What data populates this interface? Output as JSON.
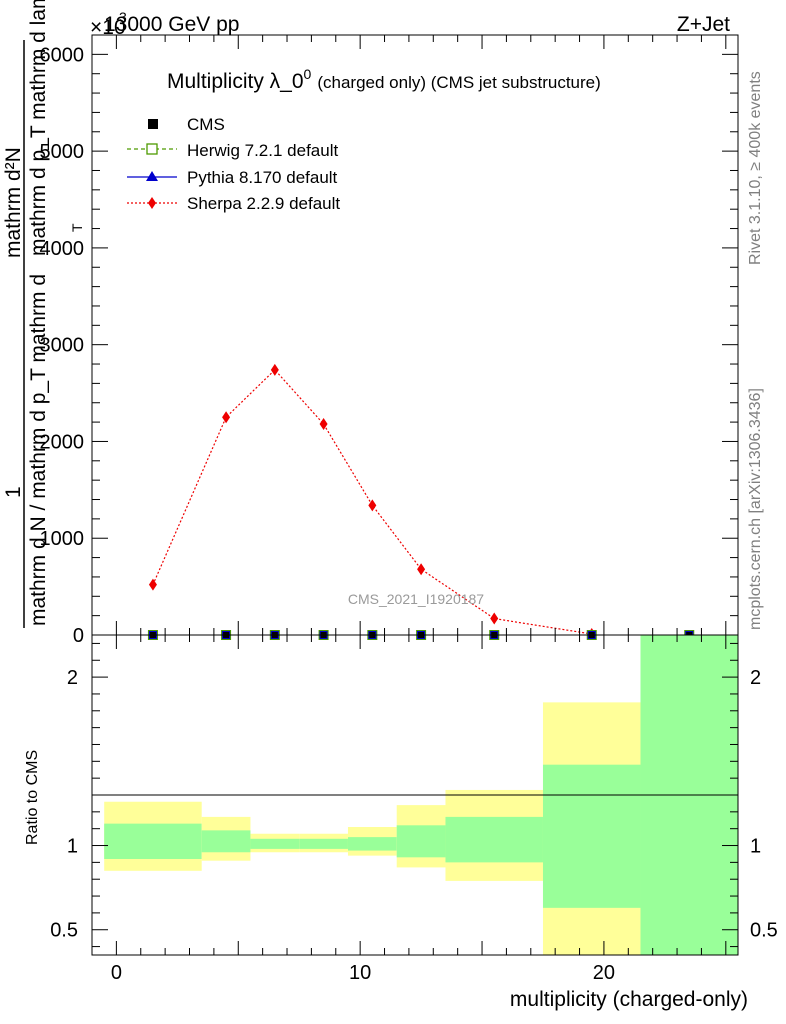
{
  "header": {
    "left": "13000 GeV pp",
    "right": "Z+Jet"
  },
  "side_labels": {
    "rivet": "Rivet 3.1.10, ≥ 400k events",
    "mcplots": "mcplots.cern.ch [arXiv:1306.3436]"
  },
  "watermark": "CMS_2021_I1920187",
  "chart_data": [
    {
      "type": "line",
      "title": "Multiplicity λ_0",
      "title_sup": "0",
      "title_suffix": "(charged only) (CMS jet substructure)",
      "exponent_label": "×10",
      "exponent_power": "3",
      "ylabel_top": "1",
      "ylabel_numerator": "mathrm d²N",
      "ylabel_denominator": "mathrm d p_T mathrm d lambda",
      "ylabel_sub": "T",
      "ylabel_bottom": "mathrm d N / mathrm d p_T mathrm d",
      "ylim": [
        0,
        6200
      ],
      "xlim": [
        -1,
        25.5
      ],
      "yticks": [
        0,
        1000,
        2000,
        3000,
        4000,
        5000,
        6000
      ],
      "yticklabels": [
        "0",
        "1000",
        "2000",
        "3000",
        "4000",
        "5000",
        "6000"
      ],
      "legend": [
        {
          "name": "CMS",
          "marker": "square",
          "color": "#000000"
        },
        {
          "name": "Herwig 7.2.1 default",
          "marker": "open-square",
          "color": "#4d9a00"
        },
        {
          "name": "Pythia 8.170 default",
          "marker": "triangle",
          "color": "#0000cc"
        },
        {
          "name": "Sherpa 2.2.9 default",
          "marker": "diamond",
          "color": "#ee0000"
        }
      ],
      "series": [
        {
          "name": "Sherpa 2.2.9 default",
          "x": [
            1.5,
            4.5,
            6.5,
            8.5,
            10.5,
            12.5,
            15.5,
            19.5
          ],
          "y": [
            520,
            2250,
            2740,
            2180,
            1340,
            680,
            170,
            10
          ]
        },
        {
          "name": "CMS",
          "x": [
            1.5,
            4.5,
            6.5,
            8.5,
            10.5,
            12.5,
            15.5,
            19.5,
            23.5
          ],
          "y": [
            0,
            0,
            0,
            0,
            0,
            0,
            0,
            0,
            0
          ]
        }
      ]
    },
    {
      "type": "area",
      "ylabel": "Ratio to CMS",
      "xlabel": "multiplicity (charged-only)",
      "ylim": [
        0.35,
        2.25
      ],
      "xlim": [
        -1,
        25.5
      ],
      "yticks": [
        0.5,
        1,
        2
      ],
      "yticklabels": [
        "0.5",
        "1",
        "2"
      ],
      "xticks": [
        0,
        10,
        20
      ],
      "xticklabels": [
        "0",
        "10",
        "20"
      ],
      "bins": [
        {
          "lo": -0.5,
          "hi": 3.5,
          "inner": [
            0.92,
            1.13
          ],
          "outer": [
            0.85,
            1.26
          ]
        },
        {
          "lo": 3.5,
          "hi": 5.5,
          "inner": [
            0.96,
            1.09
          ],
          "outer": [
            0.91,
            1.17
          ]
        },
        {
          "lo": 5.5,
          "hi": 7.5,
          "inner": [
            0.98,
            1.04
          ],
          "outer": [
            0.96,
            1.07
          ]
        },
        {
          "lo": 7.5,
          "hi": 9.5,
          "inner": [
            0.98,
            1.04
          ],
          "outer": [
            0.96,
            1.07
          ]
        },
        {
          "lo": 9.5,
          "hi": 11.5,
          "inner": [
            0.97,
            1.05
          ],
          "outer": [
            0.94,
            1.11
          ]
        },
        {
          "lo": 11.5,
          "hi": 13.5,
          "inner": [
            0.93,
            1.12
          ],
          "outer": [
            0.87,
            1.24
          ]
        },
        {
          "lo": 13.5,
          "hi": 17.5,
          "inner": [
            0.9,
            1.17
          ],
          "outer": [
            0.79,
            1.33
          ]
        },
        {
          "lo": 17.5,
          "hi": 21.5,
          "inner": [
            0.63,
            1.48
          ],
          "outer": [
            0.35,
            1.85
          ]
        },
        {
          "lo": 21.5,
          "hi": 25.5,
          "inner": [
            0.35,
            2.25
          ],
          "outer": [
            0.35,
            2.25
          ]
        }
      ]
    }
  ]
}
